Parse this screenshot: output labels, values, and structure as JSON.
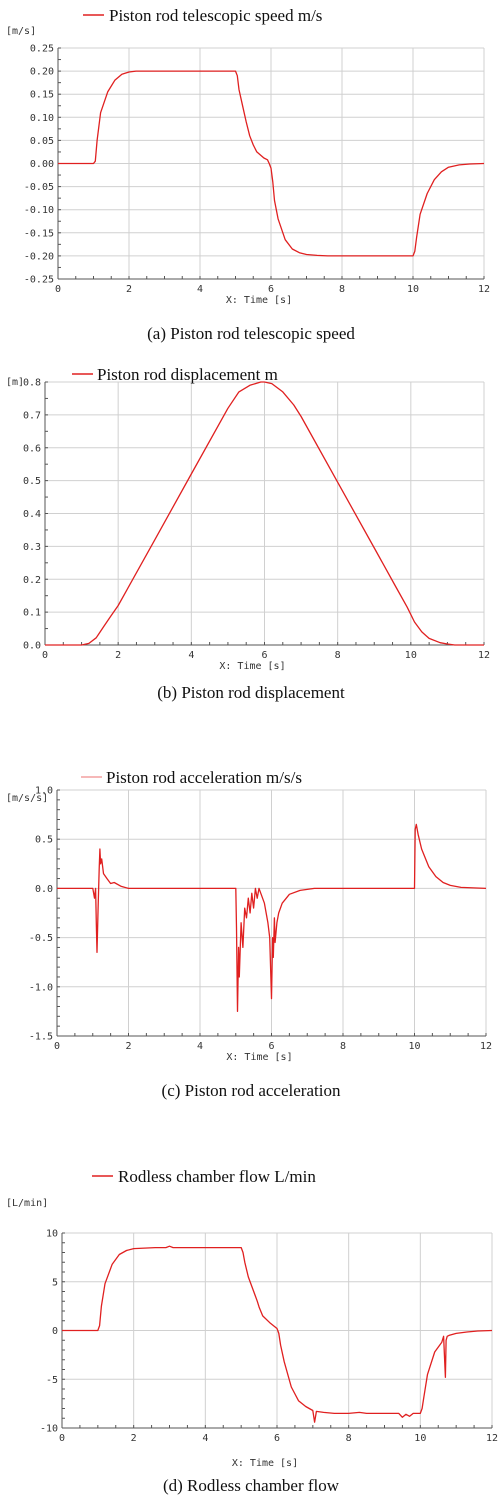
{
  "chart_data": [
    {
      "type": "line",
      "legend": "Piston rod telescopic speed m/s",
      "unit": "[m/s]",
      "xlabel": "X: Time [s]",
      "caption": "(a) Piston rod telescopic speed",
      "xlim": [
        0,
        12
      ],
      "ylim": [
        -0.25,
        0.25
      ],
      "xticks": [
        "0",
        "2",
        "4",
        "6",
        "8",
        "10",
        "12"
      ],
      "yticks": [
        "-0.25",
        "-0.20",
        "-0.15",
        "-0.10",
        "-0.05",
        "0.00",
        "0.05",
        "0.10",
        "0.15",
        "0.20",
        "0.25"
      ],
      "series": [
        {
          "x": [
            0,
            1.0,
            1.05,
            1.1,
            1.2,
            1.4,
            1.6,
            1.8,
            2.0,
            2.2,
            2.5,
            5.0,
            5.05,
            5.1,
            5.2,
            5.3,
            5.4,
            5.5,
            5.6,
            5.8,
            5.9,
            5.95,
            6.0,
            6.05,
            6.1,
            6.2,
            6.4,
            6.6,
            6.8,
            7.0,
            7.3,
            7.6,
            8.0,
            9.9,
            10.0,
            10.05,
            10.1,
            10.2,
            10.4,
            10.6,
            10.8,
            11.0,
            11.3,
            11.6,
            12.0
          ],
          "y": [
            0.0,
            0.0,
            0.005,
            0.05,
            0.11,
            0.155,
            0.18,
            0.193,
            0.198,
            0.2,
            0.2,
            0.2,
            0.19,
            0.16,
            0.125,
            0.09,
            0.06,
            0.04,
            0.025,
            0.012,
            0.008,
            0.0,
            -0.01,
            -0.04,
            -0.08,
            -0.12,
            -0.165,
            -0.185,
            -0.193,
            -0.197,
            -0.199,
            -0.2,
            -0.2,
            -0.2,
            -0.2,
            -0.19,
            -0.16,
            -0.11,
            -0.065,
            -0.035,
            -0.018,
            -0.008,
            -0.003,
            -0.001,
            0.0
          ]
        }
      ]
    },
    {
      "type": "line",
      "legend": "Piston rod displacement m",
      "unit": "[m]",
      "xlabel": "X: Time [s]",
      "caption": "(b) Piston rod displacement",
      "xlim": [
        0,
        12
      ],
      "ylim": [
        0,
        0.8
      ],
      "xticks": [
        "0",
        "2",
        "4",
        "6",
        "8",
        "10",
        "12"
      ],
      "yticks": [
        "0.0",
        "0.1",
        "0.2",
        "0.3",
        "0.4",
        "0.5",
        "0.6",
        "0.7",
        "0.8"
      ],
      "series": [
        {
          "x": [
            0,
            1.0,
            1.2,
            1.4,
            1.6,
            1.8,
            2.0,
            3.0,
            4.0,
            5.0,
            5.3,
            5.6,
            5.9,
            6.0,
            6.2,
            6.5,
            6.8,
            7.0,
            8.0,
            9.0,
            9.6,
            9.9,
            10.1,
            10.3,
            10.5,
            10.8,
            11.0,
            11.2,
            12.0
          ],
          "y": [
            0.0,
            0.0,
            0.005,
            0.022,
            0.055,
            0.088,
            0.12,
            0.32,
            0.52,
            0.72,
            0.77,
            0.79,
            0.8,
            0.8,
            0.795,
            0.77,
            0.73,
            0.695,
            0.495,
            0.295,
            0.175,
            0.115,
            0.07,
            0.04,
            0.02,
            0.007,
            0.003,
            0.0,
            0.0
          ]
        }
      ]
    },
    {
      "type": "line",
      "legend": "Piston rod acceleration m/s/s",
      "unit": "[m/s/s]",
      "xlabel": "X: Time [s]",
      "caption": "(c) Piston rod acceleration",
      "xlim": [
        0,
        12
      ],
      "ylim": [
        -1.5,
        1.0
      ],
      "xticks": [
        "0",
        "2",
        "4",
        "6",
        "8",
        "10",
        "12"
      ],
      "yticks": [
        "-1.5",
        "-1.0",
        "-0.5",
        "0.0",
        "0.5",
        "1.0"
      ],
      "series": [
        {
          "x": [
            0,
            1.0,
            1.05,
            1.08,
            1.1,
            1.12,
            1.15,
            1.18,
            1.2,
            1.22,
            1.25,
            1.3,
            1.4,
            1.5,
            1.6,
            1.8,
            2.0,
            2.2,
            5.0,
            5.02,
            5.05,
            5.08,
            5.1,
            5.15,
            5.2,
            5.25,
            5.3,
            5.35,
            5.4,
            5.45,
            5.5,
            5.55,
            5.6,
            5.65,
            5.7,
            5.8,
            5.9,
            5.95,
            6.0,
            6.03,
            6.05,
            6.08,
            6.1,
            6.15,
            6.2,
            6.3,
            6.5,
            6.8,
            7.2,
            7.6,
            10.0,
            10.02,
            10.05,
            10.1,
            10.2,
            10.4,
            10.6,
            10.8,
            11.0,
            11.3,
            12.0
          ],
          "y": [
            0.0,
            0.0,
            -0.1,
            0.0,
            -0.35,
            -0.65,
            -0.2,
            0.2,
            0.4,
            0.25,
            0.3,
            0.15,
            0.1,
            0.05,
            0.06,
            0.02,
            0.0,
            0.0,
            0.0,
            -0.4,
            -1.25,
            -0.6,
            -0.9,
            -0.35,
            -0.6,
            -0.2,
            -0.3,
            -0.1,
            -0.25,
            -0.05,
            -0.2,
            0.0,
            -0.1,
            0.0,
            -0.05,
            -0.15,
            -0.35,
            -0.5,
            -1.12,
            -0.5,
            -0.7,
            -0.3,
            -0.55,
            -0.35,
            -0.25,
            -0.15,
            -0.06,
            -0.02,
            0.0,
            0.0,
            0.0,
            0.6,
            0.65,
            0.55,
            0.4,
            0.22,
            0.12,
            0.06,
            0.03,
            0.01,
            0.0
          ]
        }
      ]
    },
    {
      "type": "line",
      "legend": "Rodless chamber flow L/min",
      "unit": "[L/min]",
      "xlabel": "X: Time [s]",
      "caption": "(d) Rodless chamber flow",
      "xlim": [
        0,
        12
      ],
      "ylim": [
        -10,
        10
      ],
      "xticks": [
        "0",
        "2",
        "4",
        "6",
        "8",
        "10",
        "12"
      ],
      "yticks": [
        "-10",
        "-5",
        "0",
        "5",
        "10"
      ],
      "series": [
        {
          "x": [
            0,
            1.0,
            1.05,
            1.1,
            1.2,
            1.4,
            1.6,
            1.8,
            2.0,
            2.3,
            2.6,
            2.9,
            3.0,
            3.1,
            3.5,
            5.0,
            5.05,
            5.1,
            5.2,
            5.3,
            5.4,
            5.45,
            5.5,
            5.6,
            5.8,
            5.9,
            6.0,
            6.05,
            6.1,
            6.2,
            6.4,
            6.6,
            6.8,
            7.0,
            7.05,
            7.1,
            7.3,
            7.6,
            8.0,
            8.3,
            8.5,
            9.0,
            9.4,
            9.5,
            9.6,
            9.7,
            9.8,
            9.9,
            10.0,
            10.05,
            10.1,
            10.2,
            10.4,
            10.6,
            10.65,
            10.7,
            10.72,
            10.75,
            10.8,
            11.0,
            11.3,
            11.6,
            12.0
          ],
          "y": [
            0.0,
            0.0,
            0.5,
            2.5,
            4.8,
            6.8,
            7.8,
            8.2,
            8.4,
            8.45,
            8.5,
            8.5,
            8.65,
            8.5,
            8.5,
            8.5,
            8.0,
            7.0,
            5.5,
            4.5,
            3.5,
            3.0,
            2.4,
            1.5,
            0.8,
            0.5,
            0.2,
            -0.3,
            -1.5,
            -3.2,
            -5.8,
            -7.2,
            -7.8,
            -8.2,
            -9.4,
            -8.3,
            -8.4,
            -8.5,
            -8.5,
            -8.4,
            -8.5,
            -8.5,
            -8.5,
            -8.9,
            -8.6,
            -8.8,
            -8.5,
            -8.5,
            -8.5,
            -8.0,
            -6.8,
            -4.5,
            -2.2,
            -1.2,
            -0.6,
            -4.8,
            -1.0,
            -0.6,
            -0.5,
            -0.3,
            -0.15,
            -0.05,
            0.0
          ]
        }
      ]
    }
  ]
}
